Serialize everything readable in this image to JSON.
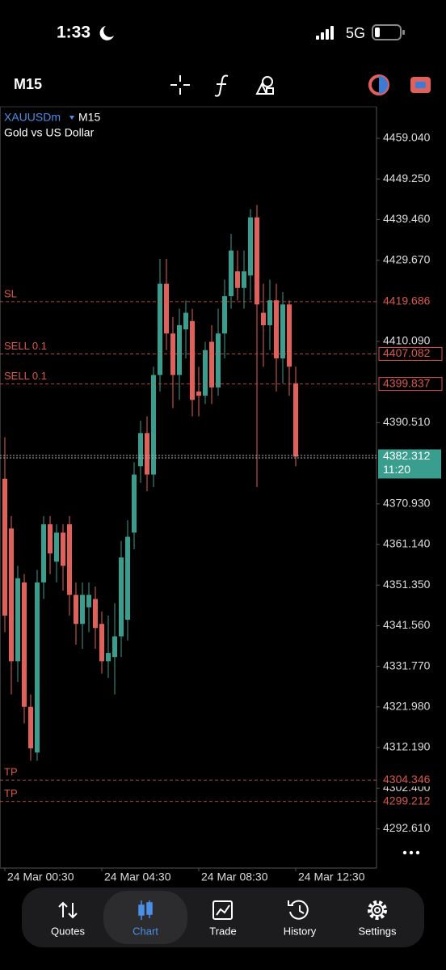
{
  "status_bar": {
    "time": "1:33",
    "network": "5G"
  },
  "toolbar": {
    "timeframe": "M15"
  },
  "chart_data": {
    "type": "candlestick",
    "symbol": "XAUUSDm",
    "timeframe": "M15",
    "subtitle": "Gold vs US Dollar",
    "up_color": "#3a9e8e",
    "down_color": "#e2605a",
    "open": [
      4377,
      4365,
      4333,
      4352,
      4322,
      4311,
      4352,
      4366,
      4357,
      4364,
      4366,
      4349,
      4342,
      4346,
      4348,
      4342,
      4333,
      4334,
      4339,
      4343,
      4364,
      4380,
      4388,
      4378,
      4402,
      4424,
      4412,
      4402,
      4413,
      4415,
      4398,
      4397,
      4410,
      4399,
      4412,
      4421,
      4427,
      4423,
      4426,
      4440,
      4417,
      4414,
      4420,
      4406,
      4419,
      4400
    ],
    "high": [
      4387,
      4368,
      4356,
      4354,
      4325,
      4355,
      4368,
      4368,
      4366,
      4366,
      4368,
      4352,
      4352,
      4352,
      4351,
      4345,
      4344,
      4347,
      4362,
      4367,
      4381,
      4391,
      4392,
      4404,
      4430,
      4430,
      4416,
      4418,
      4420,
      4418,
      4404,
      4410,
      4414,
      4418,
      4425,
      4436,
      4432,
      4432,
      4442,
      4443,
      4424,
      4425,
      4424,
      4422,
      4420,
      4404
    ],
    "low": [
      4340,
      4325,
      4328,
      4318,
      4309,
      4309,
      4348,
      4354,
      4352,
      4350,
      4344,
      4337,
      4336,
      4340,
      4336,
      4330,
      4329,
      4325,
      4334,
      4338,
      4360,
      4376,
      4374,
      4375,
      4398,
      4408,
      4394,
      4396,
      4406,
      4392,
      4392,
      4395,
      4395,
      4397,
      4406,
      4418,
      4420,
      4418,
      4420,
      4375,
      4404,
      4408,
      4398,
      4400,
      4397,
      4380
    ],
    "close": [
      4344,
      4333,
      4353,
      4322,
      4312,
      4352,
      4366,
      4359,
      4364,
      4356,
      4349,
      4342,
      4349,
      4349,
      4341,
      4333,
      4335,
      4339,
      4358,
      4363,
      4378,
      4388,
      4378,
      4402,
      4424,
      4412,
      4402,
      4414,
      4417,
      4396,
      4397,
      4408,
      4399,
      4412,
      4421,
      4432,
      4423,
      4427,
      4440,
      4419,
      4414,
      4420,
      4406,
      4419,
      4404,
      4382.312
    ],
    "ylim": [
      4283.14,
      4466.65
    ],
    "yticks": [
      {
        "value": 4459.04,
        "label": "4459.040"
      },
      {
        "value": 4449.25,
        "label": "4449.250"
      },
      {
        "value": 4439.46,
        "label": "4439.460"
      },
      {
        "value": 4429.67,
        "label": "4429.670"
      },
      {
        "value": 4410.09,
        "label": "4410.090"
      },
      {
        "value": 4390.51,
        "label": "4390.510"
      },
      {
        "value": 4370.93,
        "label": "4370.930"
      },
      {
        "value": 4361.14,
        "label": "4361.140"
      },
      {
        "value": 4351.35,
        "label": "4351.350"
      },
      {
        "value": 4341.56,
        "label": "4341.560"
      },
      {
        "value": 4331.77,
        "label": "4331.770"
      },
      {
        "value": 4321.98,
        "label": "4321.980"
      },
      {
        "value": 4312.19,
        "label": "4312.190"
      },
      {
        "value": 4302.4,
        "label": "4302.400"
      },
      {
        "value": 4292.61,
        "label": "4292.610"
      }
    ],
    "xticks": [
      {
        "value": 0,
        "label": "24 Mar 00:30"
      },
      {
        "value": 15,
        "label": "24 Mar 04:30"
      },
      {
        "value": 30,
        "label": "24 Mar 08:30"
      },
      {
        "value": 45,
        "label": "24 Mar 12:30"
      }
    ],
    "levels": [
      {
        "label": "SL",
        "value": 4419.686,
        "boxed": false
      },
      {
        "label": "SELL 0.1",
        "value": 4407.082,
        "boxed": true
      },
      {
        "label": "SELL 0.1",
        "value": 4399.837,
        "boxed": true
      },
      {
        "label": "TP",
        "value": 4304.346,
        "boxed": false
      },
      {
        "label": "TP",
        "value": 4299.212,
        "boxed": false
      }
    ],
    "level_color": "#d9574c",
    "current_price": {
      "value": 4382.312,
      "timer": "11:20",
      "color": "#3a9e8e"
    }
  },
  "nav": {
    "items": [
      "Quotes",
      "Chart",
      "Trade",
      "History",
      "Settings"
    ],
    "active": 1
  }
}
